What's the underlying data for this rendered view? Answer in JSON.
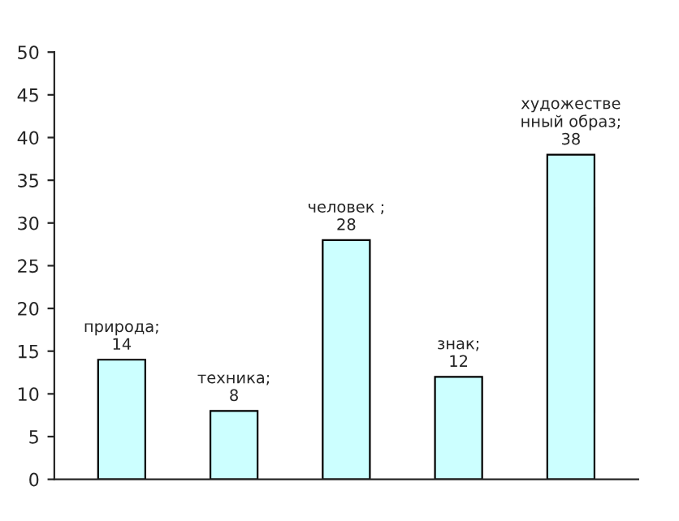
{
  "chart_data": {
    "type": "bar",
    "categories": [
      null,
      null,
      null,
      null,
      null
    ],
    "values": [
      14,
      8,
      28,
      12,
      38
    ],
    "value_labels": [
      "природа;\n14",
      "техника;\n8",
      "человек ;\n28",
      "знак;\n12",
      "художестве\nнный образ;\n38"
    ],
    "color": "#ccffff",
    "ylim": [
      0,
      50
    ],
    "yticks": [
      0,
      5,
      10,
      15,
      20,
      25,
      30,
      35,
      40,
      45,
      50
    ],
    "grid": false,
    "legend": false
  }
}
